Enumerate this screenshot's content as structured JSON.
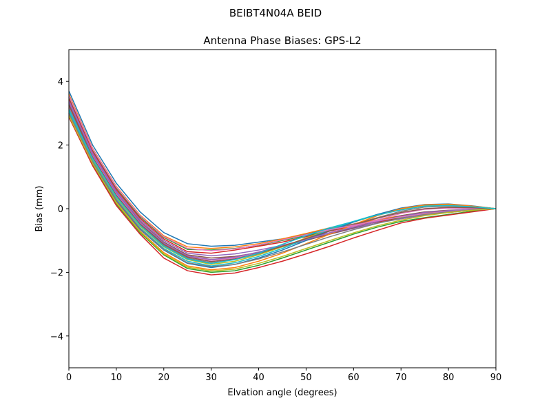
{
  "figure": {
    "suptitle": "BEIBT4N04A       BEID"
  },
  "chart_data": {
    "type": "line",
    "title": "Antenna Phase Biases: GPS-L2",
    "xlabel": "Elvation angle (degrees)",
    "ylabel": "Bias (mm)",
    "xlim": [
      0,
      90
    ],
    "ylim": [
      -5,
      5
    ],
    "xticks": [
      0,
      10,
      20,
      30,
      40,
      50,
      60,
      70,
      80,
      90
    ],
    "yticks": [
      -4,
      -2,
      0,
      2,
      4
    ],
    "ytick_labels": [
      "−4",
      "−2",
      "0",
      "2",
      "4"
    ],
    "grid": false,
    "legend": "none",
    "x": [
      0,
      5,
      10,
      15,
      20,
      25,
      30,
      35,
      40,
      45,
      50,
      55,
      60,
      65,
      70,
      75,
      80,
      85,
      90
    ],
    "series": [
      {
        "values": [
          3.7,
          2.0,
          0.8,
          -0.1,
          -0.75,
          -1.1,
          -1.18,
          -1.15,
          -1.05,
          -0.95,
          -0.8,
          -0.62,
          -0.5,
          -0.38,
          -0.25,
          -0.15,
          -0.08,
          -0.03,
          0.0
        ]
      },
      {
        "values": [
          3.6,
          1.9,
          0.7,
          -0.2,
          -0.85,
          -1.2,
          -1.25,
          -1.2,
          -1.1,
          -0.95,
          -0.78,
          -0.6,
          -0.48,
          -0.35,
          -0.22,
          -0.13,
          -0.06,
          -0.02,
          0.0
        ]
      },
      {
        "values": [
          3.5,
          1.85,
          0.65,
          -0.25,
          -0.9,
          -1.28,
          -1.3,
          -1.25,
          -1.15,
          -1.0,
          -0.85,
          -0.68,
          -0.52,
          -0.4,
          -0.28,
          -0.17,
          -0.1,
          -0.04,
          0.0
        ]
      },
      {
        "values": [
          3.45,
          1.8,
          0.6,
          -0.3,
          -0.95,
          -1.35,
          -1.4,
          -1.3,
          -1.18,
          -1.05,
          -0.88,
          -0.7,
          -0.55,
          -0.42,
          -0.3,
          -0.2,
          -0.12,
          -0.05,
          0.0
        ]
      },
      {
        "values": [
          3.4,
          1.75,
          0.55,
          -0.35,
          -1.0,
          -1.4,
          -1.48,
          -1.42,
          -1.3,
          -1.15,
          -0.98,
          -0.8,
          -0.62,
          -0.45,
          -0.32,
          -0.2,
          -0.12,
          -0.05,
          0.0
        ]
      },
      {
        "values": [
          3.3,
          1.7,
          0.5,
          -0.4,
          -1.05,
          -1.45,
          -1.55,
          -1.5,
          -1.38,
          -1.2,
          -1.0,
          -0.8,
          -0.6,
          -0.4,
          -0.22,
          -0.1,
          -0.05,
          -0.02,
          0.0
        ]
      },
      {
        "values": [
          3.2,
          1.65,
          0.45,
          -0.45,
          -1.1,
          -1.5,
          -1.62,
          -1.55,
          -1.4,
          -1.2,
          -0.98,
          -0.75,
          -0.55,
          -0.35,
          -0.15,
          -0.02,
          0.02,
          0.01,
          0.0
        ]
      },
      {
        "values": [
          3.15,
          1.6,
          0.4,
          -0.5,
          -1.15,
          -1.55,
          -1.7,
          -1.6,
          -1.42,
          -1.2,
          -0.95,
          -0.7,
          -0.48,
          -0.28,
          -0.08,
          0.05,
          0.08,
          0.05,
          0.0
        ]
      },
      {
        "values": [
          3.1,
          1.55,
          0.35,
          -0.55,
          -1.2,
          -1.6,
          -1.75,
          -1.65,
          -1.45,
          -1.2,
          -0.92,
          -0.65,
          -0.42,
          -0.2,
          -0.02,
          0.1,
          0.12,
          0.07,
          0.0
        ]
      },
      {
        "values": [
          3.05,
          1.5,
          0.3,
          -0.6,
          -1.25,
          -1.65,
          -1.8,
          -1.7,
          -1.5,
          -1.25,
          -0.95,
          -0.65,
          -0.4,
          -0.18,
          0.0,
          0.12,
          0.14,
          0.08,
          0.0
        ]
      },
      {
        "values": [
          3.0,
          1.45,
          0.25,
          -0.65,
          -1.3,
          -1.72,
          -1.85,
          -1.75,
          -1.55,
          -1.3,
          -1.0,
          -0.7,
          -0.42,
          -0.18,
          0.02,
          0.13,
          0.15,
          0.09,
          0.0
        ]
      },
      {
        "values": [
          2.95,
          1.4,
          0.2,
          -0.7,
          -1.38,
          -1.8,
          -1.92,
          -1.85,
          -1.65,
          -1.4,
          -1.1,
          -0.8,
          -0.5,
          -0.22,
          0.0,
          0.12,
          0.14,
          0.08,
          0.0
        ]
      },
      {
        "values": [
          2.9,
          1.38,
          0.15,
          -0.75,
          -1.45,
          -1.88,
          -2.0,
          -1.95,
          -1.78,
          -1.55,
          -1.3,
          -1.05,
          -0.8,
          -0.58,
          -0.4,
          -0.28,
          -0.18,
          -0.08,
          0.0
        ]
      },
      {
        "values": [
          2.88,
          1.35,
          0.1,
          -0.8,
          -1.55,
          -1.95,
          -2.08,
          -2.02,
          -1.85,
          -1.65,
          -1.42,
          -1.18,
          -0.92,
          -0.68,
          -0.45,
          -0.3,
          -0.2,
          -0.1,
          0.0
        ]
      },
      {
        "values": [
          3.35,
          1.72,
          0.5,
          -0.42,
          -1.08,
          -1.48,
          -1.6,
          -1.52,
          -1.36,
          -1.16,
          -0.96,
          -0.76,
          -0.58,
          -0.4,
          -0.24,
          -0.12,
          -0.06,
          -0.02,
          0.0
        ]
      },
      {
        "values": [
          3.25,
          1.62,
          0.42,
          -0.48,
          -1.12,
          -1.52,
          -1.66,
          -1.58,
          -1.4,
          -1.18,
          -0.94,
          -0.7,
          -0.5,
          -0.3,
          -0.12,
          0.0,
          0.04,
          0.03,
          0.0
        ]
      },
      {
        "values": [
          3.55,
          1.88,
          0.68,
          -0.22,
          -0.88,
          -1.25,
          -1.32,
          -1.26,
          -1.14,
          -0.98,
          -0.82,
          -0.66,
          -0.52,
          -0.38,
          -0.26,
          -0.16,
          -0.09,
          -0.04,
          0.0
        ]
      },
      {
        "values": [
          3.0,
          1.48,
          0.28,
          -0.62,
          -1.28,
          -1.7,
          -1.82,
          -1.75,
          -1.58,
          -1.36,
          -1.12,
          -0.88,
          -0.66,
          -0.46,
          -0.3,
          -0.18,
          -0.1,
          -0.04,
          0.0
        ]
      },
      {
        "values": [
          2.92,
          1.42,
          0.18,
          -0.72,
          -1.42,
          -1.84,
          -1.96,
          -1.9,
          -1.72,
          -1.5,
          -1.25,
          -1.0,
          -0.76,
          -0.54,
          -0.36,
          -0.22,
          -0.12,
          -0.05,
          0.0
        ]
      },
      {
        "values": [
          3.12,
          1.58,
          0.38,
          -0.52,
          -1.18,
          -1.58,
          -1.72,
          -1.6,
          -1.4,
          -1.12,
          -0.85,
          -0.6,
          -0.4,
          -0.2,
          -0.04,
          0.08,
          0.1,
          0.06,
          0.0
        ]
      }
    ]
  },
  "colors": [
    "#1f77b4",
    "#ff7f0e",
    "#2ca02c",
    "#d62728",
    "#9467bd",
    "#8c564b",
    "#e377c2",
    "#7f7f7f",
    "#bcbd22",
    "#17becf"
  ]
}
